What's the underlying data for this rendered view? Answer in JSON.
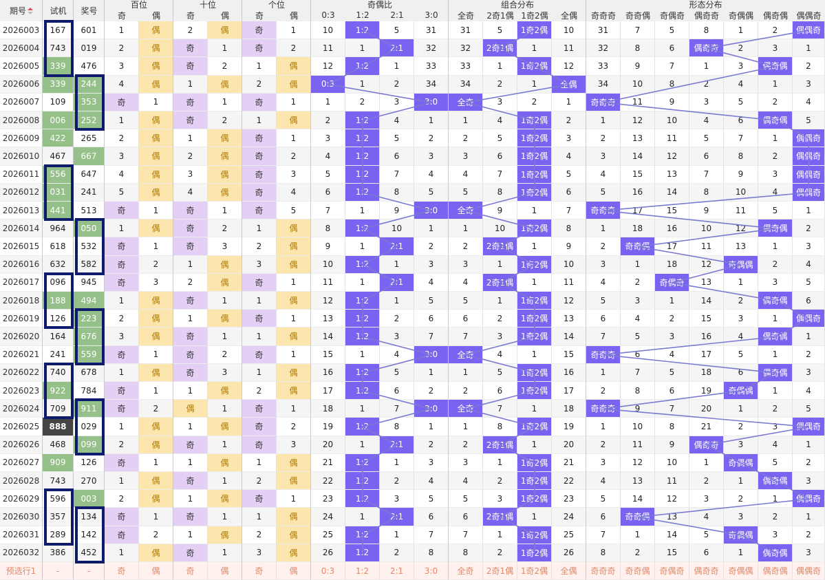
{
  "colors": {
    "header_bg": "#f0f0f0",
    "row_alt": "#f5f5f5",
    "green": "#96c08a",
    "dark": "#444444",
    "purple_light": "#e4cff5",
    "orange_light": "#fde6ad",
    "purple_hit": "#7a63f0",
    "line": "#7a7ad2",
    "box": "#0d1a6e",
    "predict": "#fff1ee",
    "predict_text": "#e08a6a"
  },
  "header": {
    "groups": [
      "百位",
      "十位",
      "个位",
      "奇偶比",
      "组合分布",
      "形态分布"
    ],
    "period": "期号",
    "trial": "试机",
    "prize": "奖号",
    "sub": [
      "奇",
      "偶",
      "奇",
      "偶",
      "奇",
      "偶",
      "0:3",
      "1:2",
      "2:1",
      "3:0",
      "全奇",
      "2奇1偶",
      "1奇2偶",
      "全偶",
      "奇奇奇",
      "奇奇偶",
      "奇偶奇",
      "偶奇奇",
      "奇偶偶",
      "偶奇偶",
      "偶偶奇"
    ]
  },
  "rows": [
    {
      "period": "2026003",
      "trial": "167",
      "prize": "601",
      "d": [
        "1",
        "偶",
        "2",
        "偶",
        "奇",
        "1"
      ],
      "ratio": [
        "10",
        "1:2",
        "5",
        "31"
      ],
      "combo": [
        "31",
        "5",
        "1奇2偶",
        "10"
      ],
      "shape": [
        "31",
        "7",
        "5",
        "8",
        "1",
        "2",
        "偶偶奇"
      ]
    },
    {
      "period": "2026004",
      "trial": "743",
      "prize": "019",
      "d": [
        "2",
        "偶",
        "奇",
        "1",
        "奇",
        "2"
      ],
      "ratio": [
        "11",
        "1",
        "2:1",
        "32"
      ],
      "combo": [
        "32",
        "2奇1偶",
        "1",
        "11"
      ],
      "shape": [
        "32",
        "8",
        "6",
        "偶奇奇",
        "2",
        "3",
        "1"
      ]
    },
    {
      "period": "2026005",
      "trial": "339",
      "prize": "476",
      "d": [
        "3",
        "偶",
        "奇",
        "2",
        "1",
        "偶"
      ],
      "ratio": [
        "12",
        "1:2",
        "1",
        "33"
      ],
      "combo": [
        "33",
        "1",
        "1奇2偶",
        "12"
      ],
      "shape": [
        "33",
        "9",
        "7",
        "1",
        "3",
        "偶奇偶",
        "2"
      ]
    },
    {
      "period": "2026006",
      "trial": "339",
      "prize": "244",
      "d": [
        "4",
        "偶",
        "1",
        "偶",
        "2",
        "偶"
      ],
      "ratio": [
        "0:3",
        "1",
        "2",
        "34"
      ],
      "combo": [
        "34",
        "2",
        "1",
        "全偶"
      ],
      "shape": [
        "34",
        "10",
        "8",
        "2",
        "4",
        "1",
        "3"
      ]
    },
    {
      "period": "2026007",
      "trial": "109",
      "prize": "353",
      "d": [
        "奇",
        "1",
        "奇",
        "1",
        "奇",
        "1"
      ],
      "ratio": [
        "1",
        "2",
        "3",
        "3:0"
      ],
      "combo": [
        "全奇",
        "3",
        "2",
        "1"
      ],
      "shape": [
        "奇奇奇",
        "11",
        "9",
        "3",
        "5",
        "2",
        "4"
      ]
    },
    {
      "period": "2026008",
      "trial": "006",
      "prize": "252",
      "d": [
        "1",
        "偶",
        "奇",
        "2",
        "1",
        "偶"
      ],
      "ratio": [
        "2",
        "1:2",
        "4",
        "1"
      ],
      "combo": [
        "1",
        "4",
        "1奇2偶",
        "2"
      ],
      "shape": [
        "1",
        "12",
        "10",
        "4",
        "6",
        "偶奇偶",
        "5"
      ]
    },
    {
      "period": "2026009",
      "trial": "422",
      "prize": "265",
      "d": [
        "2",
        "偶",
        "1",
        "偶",
        "奇",
        "1"
      ],
      "ratio": [
        "3",
        "1:2",
        "5",
        "2"
      ],
      "combo": [
        "2",
        "5",
        "1奇2偶",
        "3"
      ],
      "shape": [
        "2",
        "13",
        "11",
        "5",
        "7",
        "1",
        "偶偶奇"
      ]
    },
    {
      "period": "2026010",
      "trial": "467",
      "prize": "667",
      "d": [
        "3",
        "偶",
        "2",
        "偶",
        "奇",
        "2"
      ],
      "ratio": [
        "4",
        "1:2",
        "6",
        "3"
      ],
      "combo": [
        "3",
        "6",
        "1奇2偶",
        "4"
      ],
      "shape": [
        "3",
        "14",
        "12",
        "6",
        "8",
        "2",
        "偶偶奇"
      ]
    },
    {
      "period": "2026011",
      "trial": "556",
      "prize": "647",
      "d": [
        "4",
        "偶",
        "3",
        "偶",
        "奇",
        "3"
      ],
      "ratio": [
        "5",
        "1:2",
        "7",
        "4"
      ],
      "combo": [
        "4",
        "7",
        "1奇2偶",
        "5"
      ],
      "shape": [
        "4",
        "15",
        "13",
        "7",
        "9",
        "3",
        "偶偶奇"
      ]
    },
    {
      "period": "2026012",
      "trial": "031",
      "prize": "241",
      "d": [
        "5",
        "偶",
        "4",
        "偶",
        "奇",
        "4"
      ],
      "ratio": [
        "6",
        "1:2",
        "8",
        "5"
      ],
      "combo": [
        "5",
        "8",
        "1奇2偶",
        "6"
      ],
      "shape": [
        "5",
        "16",
        "14",
        "8",
        "10",
        "4",
        "偶偶奇"
      ]
    },
    {
      "period": "2026013",
      "trial": "441",
      "prize": "513",
      "d": [
        "奇",
        "1",
        "奇",
        "1",
        "奇",
        "5"
      ],
      "ratio": [
        "7",
        "1",
        "9",
        "3:0"
      ],
      "combo": [
        "全奇",
        "9",
        "1",
        "7"
      ],
      "shape": [
        "奇奇奇",
        "17",
        "15",
        "9",
        "11",
        "5",
        "1"
      ]
    },
    {
      "period": "2026014",
      "trial": "964",
      "prize": "050",
      "d": [
        "1",
        "偶",
        "奇",
        "2",
        "1",
        "偶"
      ],
      "ratio": [
        "8",
        "1:2",
        "10",
        "1"
      ],
      "combo": [
        "1",
        "10",
        "1奇2偶",
        "8"
      ],
      "shape": [
        "1",
        "18",
        "16",
        "10",
        "12",
        "偶奇偶",
        "2"
      ]
    },
    {
      "period": "2026015",
      "trial": "618",
      "prize": "532",
      "d": [
        "奇",
        "1",
        "奇",
        "3",
        "2",
        "偶"
      ],
      "ratio": [
        "9",
        "1",
        "2:1",
        "2"
      ],
      "combo": [
        "2",
        "2奇1偶",
        "1",
        "9"
      ],
      "shape": [
        "2",
        "奇奇偶",
        "17",
        "11",
        "13",
        "1",
        "3"
      ]
    },
    {
      "period": "2026016",
      "trial": "632",
      "prize": "582",
      "d": [
        "奇",
        "2",
        "1",
        "偶",
        "3",
        "偶"
      ],
      "ratio": [
        "10",
        "1:2",
        "1",
        "3"
      ],
      "combo": [
        "3",
        "1",
        "1奇2偶",
        "10"
      ],
      "shape": [
        "3",
        "1",
        "18",
        "12",
        "奇偶偶",
        "2",
        "4"
      ]
    },
    {
      "period": "2026017",
      "trial": "096",
      "prize": "945",
      "d": [
        "奇",
        "3",
        "2",
        "偶",
        "奇",
        "1"
      ],
      "ratio": [
        "11",
        "1",
        "2:1",
        "4"
      ],
      "combo": [
        "4",
        "2奇1偶",
        "1",
        "11"
      ],
      "shape": [
        "4",
        "2",
        "奇偶奇",
        "13",
        "1",
        "3",
        "5"
      ]
    },
    {
      "period": "2026018",
      "trial": "188",
      "prize": "494",
      "d": [
        "1",
        "偶",
        "奇",
        "1",
        "1",
        "偶"
      ],
      "ratio": [
        "12",
        "1:2",
        "1",
        "5"
      ],
      "combo": [
        "5",
        "1",
        "1奇2偶",
        "12"
      ],
      "shape": [
        "5",
        "3",
        "1",
        "14",
        "2",
        "偶奇偶",
        "6"
      ]
    },
    {
      "period": "2026019",
      "trial": "126",
      "prize": "223",
      "d": [
        "2",
        "偶",
        "1",
        "偶",
        "奇",
        "1"
      ],
      "ratio": [
        "13",
        "1:2",
        "2",
        "6"
      ],
      "combo": [
        "6",
        "2",
        "1奇2偶",
        "13"
      ],
      "shape": [
        "6",
        "4",
        "2",
        "15",
        "3",
        "1",
        "偶偶奇"
      ]
    },
    {
      "period": "2026020",
      "trial": "164",
      "prize": "676",
      "d": [
        "3",
        "偶",
        "奇",
        "1",
        "1",
        "偶"
      ],
      "ratio": [
        "14",
        "1:2",
        "3",
        "7"
      ],
      "combo": [
        "7",
        "3",
        "1奇2偶",
        "14"
      ],
      "shape": [
        "7",
        "5",
        "3",
        "16",
        "4",
        "偶奇偶",
        "1"
      ]
    },
    {
      "period": "2026021",
      "trial": "241",
      "prize": "559",
      "d": [
        "奇",
        "1",
        "奇",
        "2",
        "奇",
        "1"
      ],
      "ratio": [
        "15",
        "1",
        "4",
        "3:0"
      ],
      "combo": [
        "全奇",
        "4",
        "1",
        "15"
      ],
      "shape": [
        "奇奇奇",
        "6",
        "4",
        "17",
        "5",
        "1",
        "2"
      ]
    },
    {
      "period": "2026022",
      "trial": "740",
      "prize": "678",
      "d": [
        "1",
        "偶",
        "奇",
        "3",
        "1",
        "偶"
      ],
      "ratio": [
        "16",
        "1:2",
        "5",
        "1"
      ],
      "combo": [
        "1",
        "5",
        "1奇2偶",
        "16"
      ],
      "shape": [
        "1",
        "7",
        "5",
        "18",
        "6",
        "偶奇偶",
        "3"
      ]
    },
    {
      "period": "2026023",
      "trial": "922",
      "prize": "784",
      "d": [
        "奇",
        "1",
        "1",
        "偶",
        "2",
        "偶"
      ],
      "ratio": [
        "17",
        "1:2",
        "6",
        "2"
      ],
      "combo": [
        "2",
        "6",
        "1奇2偶",
        "17"
      ],
      "shape": [
        "2",
        "8",
        "6",
        "19",
        "奇偶偶",
        "1",
        "4"
      ]
    },
    {
      "period": "2026024",
      "trial": "709",
      "prize": "911",
      "d": [
        "奇",
        "2",
        "偶",
        "1",
        "奇",
        "1"
      ],
      "ratio": [
        "18",
        "1",
        "7",
        "3:0"
      ],
      "combo": [
        "全奇",
        "7",
        "1",
        "18"
      ],
      "shape": [
        "奇奇奇",
        "9",
        "7",
        "20",
        "1",
        "2",
        "5"
      ]
    },
    {
      "period": "2026025",
      "trial": "888",
      "prize": "029",
      "d": [
        "1",
        "偶",
        "1",
        "偶",
        "奇",
        "2"
      ],
      "ratio": [
        "19",
        "1:2",
        "8",
        "1"
      ],
      "combo": [
        "1",
        "8",
        "1奇2偶",
        "19"
      ],
      "shape": [
        "1",
        "10",
        "8",
        "21",
        "2",
        "3",
        "偶偶奇"
      ]
    },
    {
      "period": "2026026",
      "trial": "468",
      "prize": "099",
      "d": [
        "2",
        "偶",
        "奇",
        "1",
        "奇",
        "3"
      ],
      "ratio": [
        "20",
        "1",
        "2:1",
        "2"
      ],
      "combo": [
        "2",
        "2奇1偶",
        "1",
        "20"
      ],
      "shape": [
        "2",
        "11",
        "9",
        "偶奇奇",
        "3",
        "4",
        "1"
      ]
    },
    {
      "period": "2026027",
      "trial": "909",
      "prize": "126",
      "d": [
        "奇",
        "1",
        "1",
        "偶",
        "1",
        "偶"
      ],
      "ratio": [
        "21",
        "1:2",
        "1",
        "3"
      ],
      "combo": [
        "3",
        "1",
        "1奇2偶",
        "21"
      ],
      "shape": [
        "3",
        "12",
        "10",
        "1",
        "奇偶偶",
        "5",
        "2"
      ]
    },
    {
      "period": "2026028",
      "trial": "743",
      "prize": "270",
      "d": [
        "1",
        "偶",
        "奇",
        "1",
        "2",
        "偶"
      ],
      "ratio": [
        "22",
        "1:2",
        "2",
        "4"
      ],
      "combo": [
        "4",
        "2",
        "1奇2偶",
        "22"
      ],
      "shape": [
        "4",
        "13",
        "11",
        "2",
        "1",
        "偶奇偶",
        "3"
      ]
    },
    {
      "period": "2026029",
      "trial": "596",
      "prize": "003",
      "d": [
        "2",
        "偶",
        "1",
        "偶",
        "奇",
        "1"
      ],
      "ratio": [
        "23",
        "1:2",
        "3",
        "5"
      ],
      "combo": [
        "5",
        "3",
        "1奇2偶",
        "23"
      ],
      "shape": [
        "5",
        "14",
        "12",
        "3",
        "2",
        "1",
        "偶偶奇"
      ]
    },
    {
      "period": "2026030",
      "trial": "357",
      "prize": "134",
      "d": [
        "奇",
        "1",
        "奇",
        "1",
        "1",
        "偶"
      ],
      "ratio": [
        "24",
        "1",
        "2:1",
        "6"
      ],
      "combo": [
        "6",
        "2奇1偶",
        "1",
        "24"
      ],
      "shape": [
        "6",
        "奇奇偶",
        "13",
        "4",
        "3",
        "2",
        "1"
      ]
    },
    {
      "period": "2026031",
      "trial": "289",
      "prize": "142",
      "d": [
        "奇",
        "2",
        "1",
        "偶",
        "2",
        "偶"
      ],
      "ratio": [
        "25",
        "1:2",
        "1",
        "7"
      ],
      "combo": [
        "7",
        "1",
        "1奇2偶",
        "25"
      ],
      "shape": [
        "7",
        "1",
        "14",
        "5",
        "奇偶偶",
        "3",
        "2"
      ]
    },
    {
      "period": "2026032",
      "trial": "386",
      "prize": "452",
      "d": [
        "1",
        "偶",
        "奇",
        "1",
        "3",
        "偶"
      ],
      "ratio": [
        "26",
        "1:2",
        "2",
        "8"
      ],
      "combo": [
        "8",
        "2",
        "1奇2偶",
        "26"
      ],
      "shape": [
        "8",
        "2",
        "15",
        "6",
        "1",
        "偶奇偶",
        "3"
      ]
    }
  ],
  "predict": {
    "label": "预选行1",
    "trial": "-",
    "prize": "-",
    "cells": [
      "奇",
      "偶",
      "奇",
      "偶",
      "奇",
      "偶",
      "0:3",
      "1:2",
      "2:1",
      "3:0",
      "全奇",
      "2奇1偶",
      "1奇2偶",
      "全偶",
      "奇奇奇",
      "奇奇偶",
      "奇偶奇",
      "偶奇奇",
      "奇偶偶",
      "偶奇偶",
      "偶偶奇"
    ]
  }
}
